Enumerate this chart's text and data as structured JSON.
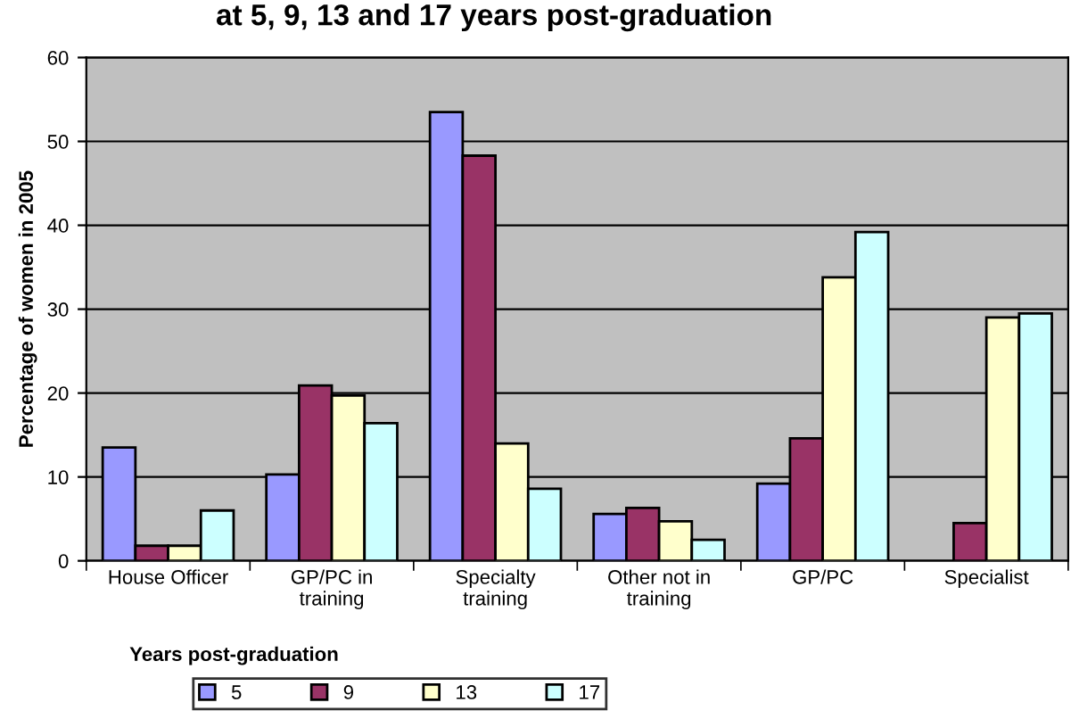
{
  "chart_data": {
    "type": "bar",
    "title": "at 5, 9, 13 and 17 years post-graduation",
    "ylabel": "Percentage of women in 2005",
    "legend_title": "Years post-graduation",
    "categories": [
      "House Officer",
      "GP/PC in\ntraining",
      "Specialty\ntraining",
      "Other not in\ntraining",
      "GP/PC",
      "Specialist"
    ],
    "series": [
      {
        "name": "5",
        "color": "#9999ff",
        "values": [
          13.5,
          10.3,
          53.5,
          5.6,
          9.2,
          null
        ]
      },
      {
        "name": "9",
        "color": "#993366",
        "values": [
          1.8,
          20.9,
          48.3,
          6.3,
          14.6,
          4.5
        ]
      },
      {
        "name": "13",
        "color": "#ffffcc",
        "values": [
          1.8,
          19.7,
          14.0,
          4.7,
          33.8,
          29.0
        ]
      },
      {
        "name": "17",
        "color": "#ccffff",
        "values": [
          6.0,
          16.4,
          8.6,
          2.5,
          39.2,
          29.5
        ]
      }
    ],
    "ylim": [
      0,
      60
    ],
    "yticks": [
      0,
      10,
      20,
      30,
      40,
      50,
      60
    ],
    "grid": "y",
    "legend": "bottom"
  }
}
